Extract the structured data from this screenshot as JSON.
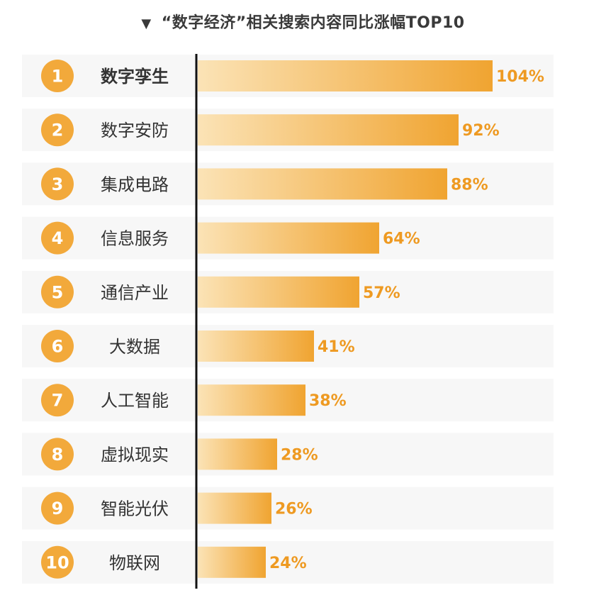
{
  "chart_data": {
    "type": "bar",
    "orientation": "horizontal",
    "title": "“数字经济”相关搜索内容同比涨幅TOP10",
    "ranks": [
      "1",
      "2",
      "3",
      "4",
      "5",
      "6",
      "7",
      "8",
      "9",
      "10"
    ],
    "categories": [
      "数字孪生",
      "数字安防",
      "集成电路",
      "信息服务",
      "通信产业",
      "大数据",
      "人工智能",
      "虚拟现实",
      "智能光伏",
      "物联网"
    ],
    "values": [
      104,
      92,
      88,
      64,
      57,
      41,
      38,
      28,
      26,
      24
    ],
    "value_labels": [
      "104%",
      "92%",
      "88%",
      "64%",
      "57%",
      "41%",
      "38%",
      "28%",
      "26%",
      "24%"
    ],
    "xlim": [
      0,
      105
    ],
    "grid": false,
    "colors": {
      "bar_start": "#fbe3b6",
      "bar_end": "#f0a431",
      "rank_circle": "#f2a93b",
      "value_text": "#ee9a22"
    }
  }
}
